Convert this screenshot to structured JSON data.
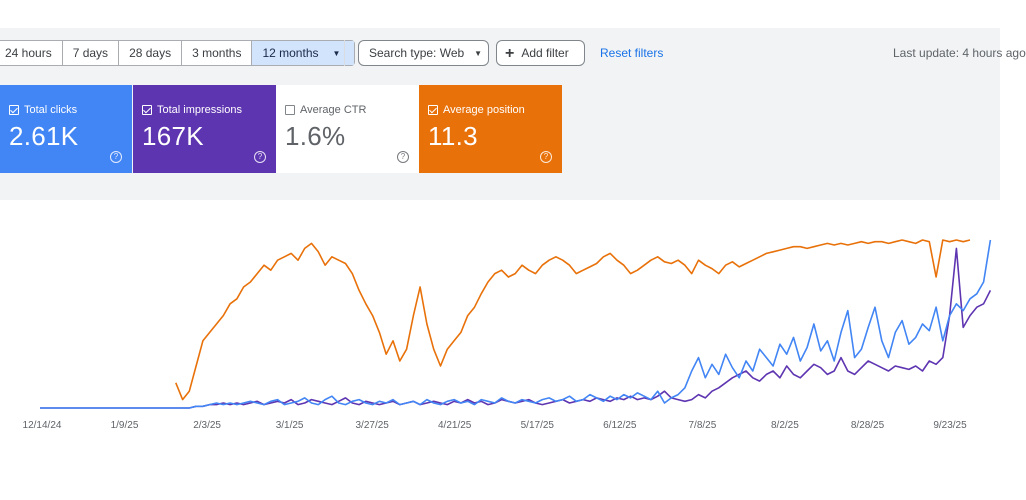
{
  "filters": {
    "ranges": [
      "24 hours",
      "7 days",
      "28 days",
      "3 months",
      "12 months"
    ],
    "search_type": "Search type: Web",
    "add_filter": "Add filter",
    "reset": "Reset filters",
    "last_update": "Last update: 4 hours ago"
  },
  "cards": {
    "clicks": {
      "label": "Total clicks",
      "value": "2.61K",
      "checked": true,
      "color": "#4285f4"
    },
    "impressions": {
      "label": "Total impressions",
      "value": "167K",
      "checked": true,
      "color": "#5e35b1"
    },
    "ctr": {
      "label": "Average CTR",
      "value": "1.6%",
      "checked": false
    },
    "position": {
      "label": "Average position",
      "value": "11.3",
      "checked": true,
      "color": "#e8710a"
    }
  },
  "chart_data": {
    "type": "line",
    "x_ticks": [
      "12/14/24",
      "1/9/25",
      "2/3/25",
      "3/1/25",
      "3/27/25",
      "4/21/25",
      "5/17/25",
      "6/12/25",
      "7/8/25",
      "8/2/25",
      "8/28/25",
      "9/23/25"
    ],
    "y_axis": "hidden",
    "grid": false,
    "series": [
      {
        "metric": "position",
        "color": "#e8710a",
        "values": [
          null,
          null,
          null,
          null,
          null,
          null,
          null,
          null,
          null,
          null,
          null,
          null,
          null,
          null,
          null,
          null,
          null,
          null,
          null,
          null,
          0.15,
          0.05,
          0.1,
          0.25,
          0.4,
          0.45,
          0.5,
          0.55,
          0.62,
          0.65,
          0.72,
          0.75,
          0.8,
          0.85,
          0.82,
          0.88,
          0.9,
          0.92,
          0.88,
          0.95,
          0.98,
          0.93,
          0.85,
          0.9,
          0.88,
          0.86,
          0.8,
          0.7,
          0.62,
          0.55,
          0.45,
          0.32,
          0.4,
          0.28,
          0.35,
          0.55,
          0.72,
          0.5,
          0.35,
          0.25,
          0.35,
          0.4,
          0.45,
          0.55,
          0.6,
          0.68,
          0.75,
          0.8,
          0.82,
          0.78,
          0.8,
          0.85,
          0.82,
          0.8,
          0.85,
          0.88,
          0.9,
          0.88,
          0.85,
          0.8,
          0.82,
          0.84,
          0.86,
          0.9,
          0.92,
          0.88,
          0.85,
          0.8,
          0.82,
          0.85,
          0.88,
          0.9,
          0.87,
          0.86,
          0.88,
          0.85,
          0.8,
          0.88,
          0.85,
          0.83,
          0.8,
          0.85,
          0.87,
          0.84,
          0.86,
          0.88,
          0.9,
          0.92,
          0.93,
          0.94,
          0.95,
          0.96,
          0.96,
          0.95,
          0.96,
          0.97,
          0.98,
          0.97,
          0.98,
          0.97,
          0.98,
          0.99,
          0.98,
          0.99,
          0.99,
          0.98,
          0.99,
          1.0,
          0.99,
          0.98,
          1.0,
          0.99,
          0.78,
          1.0,
          0.99,
          1.0,
          0.99,
          1.0
        ]
      },
      {
        "metric": "impressions",
        "color": "#5e35b1",
        "values": [
          0.0,
          0.0,
          0.0,
          0.0,
          0.0,
          0.0,
          0.0,
          0.0,
          0.0,
          0.0,
          0.0,
          0.0,
          0.0,
          0.0,
          0.0,
          0.0,
          0.0,
          0.0,
          0.0,
          0.0,
          0.0,
          0.0,
          0.0,
          0.01,
          0.01,
          0.02,
          0.02,
          0.03,
          0.02,
          0.03,
          0.02,
          0.03,
          0.04,
          0.02,
          0.03,
          0.04,
          0.03,
          0.05,
          0.02,
          0.03,
          0.05,
          0.04,
          0.03,
          0.02,
          0.04,
          0.06,
          0.03,
          0.02,
          0.04,
          0.03,
          0.02,
          0.03,
          0.04,
          0.02,
          0.03,
          0.04,
          0.02,
          0.03,
          0.04,
          0.03,
          0.02,
          0.04,
          0.03,
          0.05,
          0.03,
          0.04,
          0.02,
          0.03,
          0.05,
          0.04,
          0.03,
          0.04,
          0.05,
          0.03,
          0.02,
          0.03,
          0.04,
          0.05,
          0.03,
          0.04,
          0.05,
          0.04,
          0.06,
          0.05,
          0.04,
          0.06,
          0.05,
          0.07,
          0.05,
          0.06,
          0.05,
          0.07,
          0.1,
          0.06,
          0.05,
          0.04,
          0.05,
          0.08,
          0.06,
          0.1,
          0.12,
          0.15,
          0.18,
          0.2,
          0.22,
          0.18,
          0.16,
          0.2,
          0.22,
          0.18,
          0.25,
          0.2,
          0.18,
          0.22,
          0.26,
          0.24,
          0.2,
          0.22,
          0.3,
          0.22,
          0.2,
          0.24,
          0.28,
          0.26,
          0.24,
          0.22,
          0.25,
          0.24,
          0.23,
          0.25,
          0.22,
          0.28,
          0.26,
          0.3,
          0.55,
          0.95,
          0.48,
          0.55,
          0.6,
          0.62,
          0.7
        ]
      },
      {
        "metric": "clicks",
        "color": "#4285f4",
        "values": [
          0.0,
          0.0,
          0.0,
          0.0,
          0.0,
          0.0,
          0.0,
          0.0,
          0.0,
          0.0,
          0.0,
          0.0,
          0.0,
          0.0,
          0.0,
          0.0,
          0.0,
          0.0,
          0.0,
          0.0,
          0.0,
          0.0,
          0.0,
          0.01,
          0.01,
          0.02,
          0.03,
          0.02,
          0.03,
          0.02,
          0.03,
          0.04,
          0.03,
          0.02,
          0.04,
          0.05,
          0.02,
          0.03,
          0.04,
          0.06,
          0.03,
          0.02,
          0.05,
          0.07,
          0.03,
          0.02,
          0.04,
          0.05,
          0.03,
          0.02,
          0.04,
          0.03,
          0.05,
          0.02,
          0.03,
          0.04,
          0.02,
          0.05,
          0.03,
          0.02,
          0.04,
          0.05,
          0.03,
          0.04,
          0.02,
          0.05,
          0.04,
          0.03,
          0.06,
          0.04,
          0.03,
          0.05,
          0.04,
          0.03,
          0.05,
          0.06,
          0.04,
          0.05,
          0.07,
          0.04,
          0.05,
          0.08,
          0.06,
          0.04,
          0.07,
          0.05,
          0.08,
          0.06,
          0.09,
          0.07,
          0.05,
          0.1,
          0.03,
          0.06,
          0.08,
          0.12,
          0.22,
          0.3,
          0.18,
          0.26,
          0.2,
          0.32,
          0.24,
          0.18,
          0.28,
          0.22,
          0.35,
          0.3,
          0.25,
          0.38,
          0.32,
          0.42,
          0.28,
          0.36,
          0.5,
          0.34,
          0.4,
          0.28,
          0.45,
          0.58,
          0.3,
          0.35,
          0.48,
          0.6,
          0.4,
          0.3,
          0.45,
          0.52,
          0.38,
          0.42,
          0.5,
          0.46,
          0.6,
          0.4,
          0.55,
          0.62,
          0.58,
          0.65,
          0.68,
          0.75,
          1.0
        ]
      }
    ]
  }
}
